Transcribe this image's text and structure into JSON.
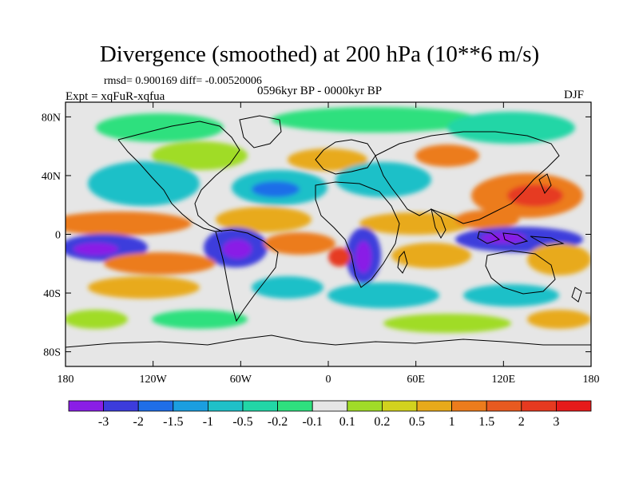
{
  "figure": {
    "title": "Divergence (smoothed) at 200 hPa (10**6 m/s)",
    "stats": "rmsd= 0.900169 diff= -0.00520006",
    "experiment": "Expt = xqFuR-xqfua",
    "period": "0596kyr BP - 0000kyr BP",
    "season": "DJF"
  },
  "map": {
    "projection": "cylindrical equidistant",
    "lon_ticks": [
      "180",
      "120W",
      "60W",
      "0",
      "60E",
      "120E",
      "180"
    ],
    "lat_ticks": [
      "80N",
      "40N",
      "0",
      "40S",
      "80S"
    ],
    "coastlines": true
  },
  "colorbar": {
    "labels": [
      "-3",
      "-2",
      "-1.5",
      "-1",
      "-0.5",
      "-0.2",
      "-0.1",
      "0.1",
      "0.2",
      "0.5",
      "1",
      "1.5",
      "2",
      "3"
    ],
    "colors": [
      "#8a1ee6",
      "#3c3cdc",
      "#1f6ee8",
      "#1b9ee0",
      "#1fc0c8",
      "#22d6a6",
      "#2ee07e",
      "#e6e6e6",
      "#a0dc28",
      "#d2d21e",
      "#e8aa1a",
      "#ec7c1c",
      "#e85a20",
      "#e63a20",
      "#e61a1a"
    ]
  }
}
